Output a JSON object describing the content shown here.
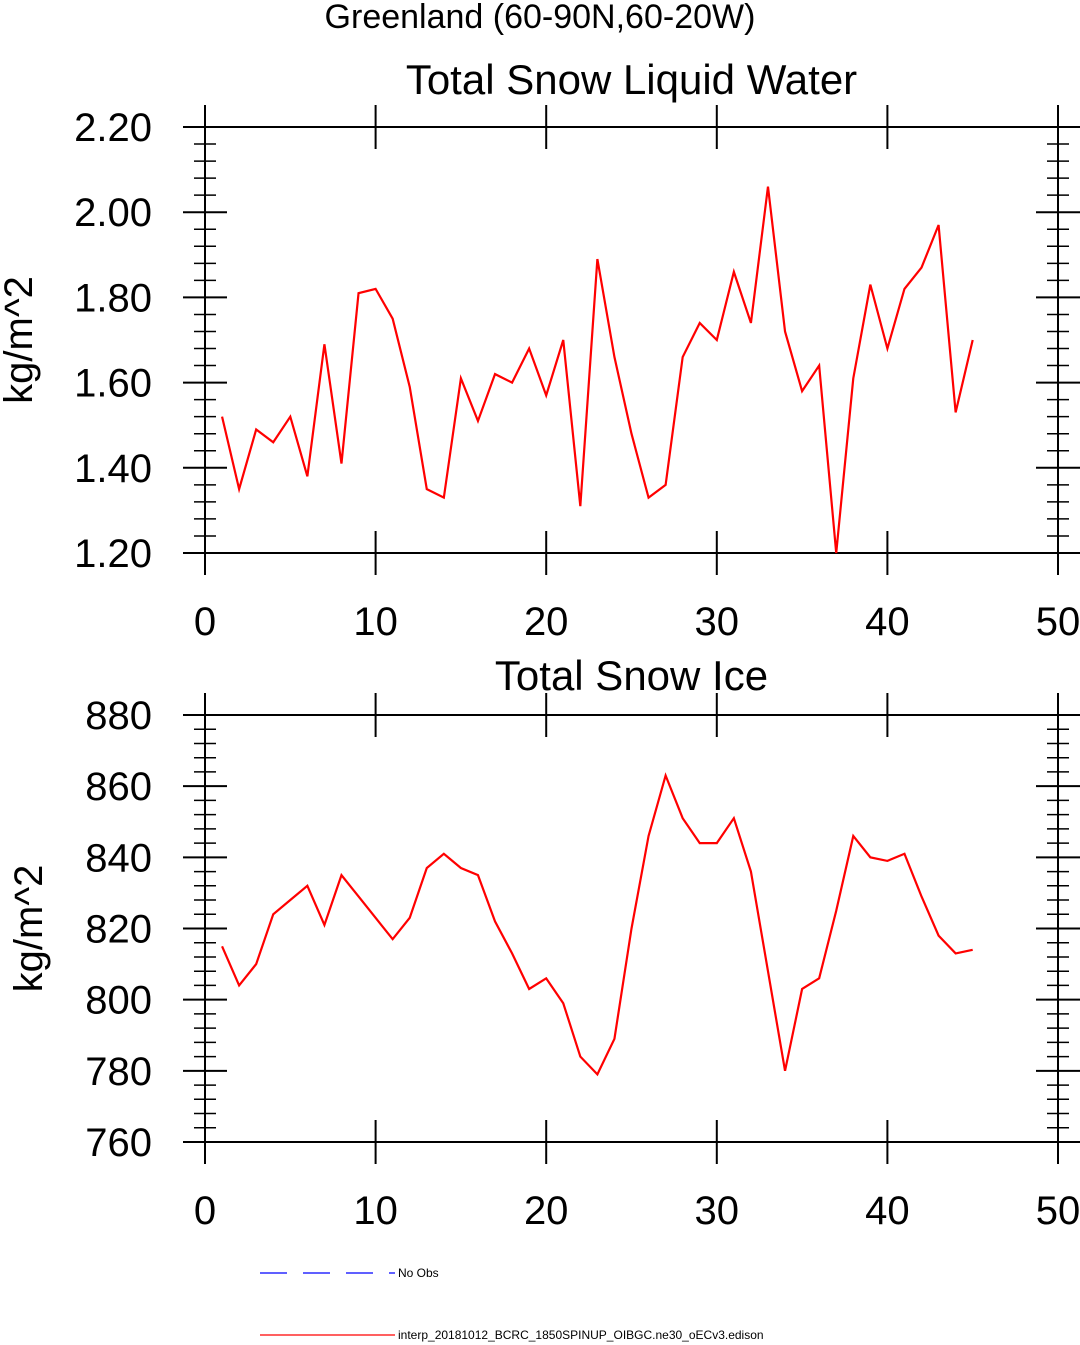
{
  "suptitle": "Greenland (60-90N,60-20W)",
  "legend": {
    "placement": "bottom",
    "entries": [
      {
        "label": "No Obs",
        "color": "#0000ff",
        "style": "dashed"
      },
      {
        "label": "interp_20181012_BCRC_1850SPINUP_OIBGC.ne30_oECv3.edison",
        "color": "#ff0000",
        "style": "solid"
      }
    ]
  },
  "chart_data": [
    {
      "type": "line",
      "title": "Total Snow Liquid Water",
      "xlabel": "",
      "ylabel": "kg/m^2",
      "xlim": [
        0,
        50
      ],
      "ylim": [
        1.2,
        2.2
      ],
      "xticks": [
        "0",
        "10",
        "20",
        "30",
        "40",
        "50"
      ],
      "yticks": [
        "1.20",
        "1.40",
        "1.60",
        "1.80",
        "2.00",
        "2.20"
      ],
      "grid": false,
      "series": [
        {
          "name": "interp_20181012_BCRC_1850SPINUP_OIBGC.ne30_oECv3.edison",
          "color": "#ff0000",
          "x": [
            1,
            2,
            3,
            4,
            5,
            6,
            7,
            8,
            9,
            10,
            11,
            12,
            13,
            14,
            15,
            16,
            17,
            18,
            19,
            20,
            21,
            22,
            23,
            24,
            25,
            26,
            27,
            28,
            29,
            30,
            31,
            32,
            33,
            34,
            35,
            36,
            37,
            38,
            39,
            40,
            41,
            42,
            43,
            44,
            45
          ],
          "values": [
            1.52,
            1.35,
            1.49,
            1.46,
            1.52,
            1.38,
            1.69,
            1.41,
            1.81,
            1.82,
            1.75,
            1.59,
            1.35,
            1.33,
            1.61,
            1.51,
            1.62,
            1.6,
            1.68,
            1.57,
            1.7,
            1.31,
            1.89,
            1.66,
            1.48,
            1.33,
            1.36,
            1.66,
            1.74,
            1.7,
            1.86,
            1.74,
            2.06,
            1.72,
            1.58,
            1.64,
            1.2,
            1.61,
            1.83,
            1.68,
            1.82,
            1.87,
            1.97,
            1.53,
            1.7
          ]
        }
      ]
    },
    {
      "type": "line",
      "title": "Total Snow Ice",
      "xlabel": "",
      "ylabel": "kg/m^2",
      "xlim": [
        0,
        50
      ],
      "ylim": [
        760,
        880
      ],
      "xticks": [
        "0",
        "10",
        "20",
        "30",
        "40",
        "50"
      ],
      "yticks": [
        "760",
        "780",
        "800",
        "820",
        "840",
        "860",
        "880"
      ],
      "grid": false,
      "series": [
        {
          "name": "interp_20181012_BCRC_1850SPINUP_OIBGC.ne30_oECv3.edison",
          "color": "#ff0000",
          "x": [
            1,
            2,
            3,
            4,
            5,
            6,
            7,
            8,
            9,
            10,
            11,
            12,
            13,
            14,
            15,
            16,
            17,
            18,
            19,
            20,
            21,
            22,
            23,
            24,
            25,
            26,
            27,
            28,
            29,
            30,
            31,
            32,
            33,
            34,
            35,
            36,
            37,
            38,
            39,
            40,
            41,
            42,
            43,
            44,
            45
          ],
          "values": [
            815,
            804,
            810,
            824,
            828,
            832,
            821,
            835,
            829,
            823,
            817,
            823,
            837,
            841,
            837,
            835,
            822,
            813,
            803,
            806,
            799,
            784,
            779,
            789,
            820,
            846,
            863,
            851,
            844,
            844,
            851,
            836,
            808,
            780,
            803,
            806,
            825,
            846,
            840,
            839,
            841,
            829,
            818,
            813,
            814
          ]
        }
      ]
    }
  ]
}
